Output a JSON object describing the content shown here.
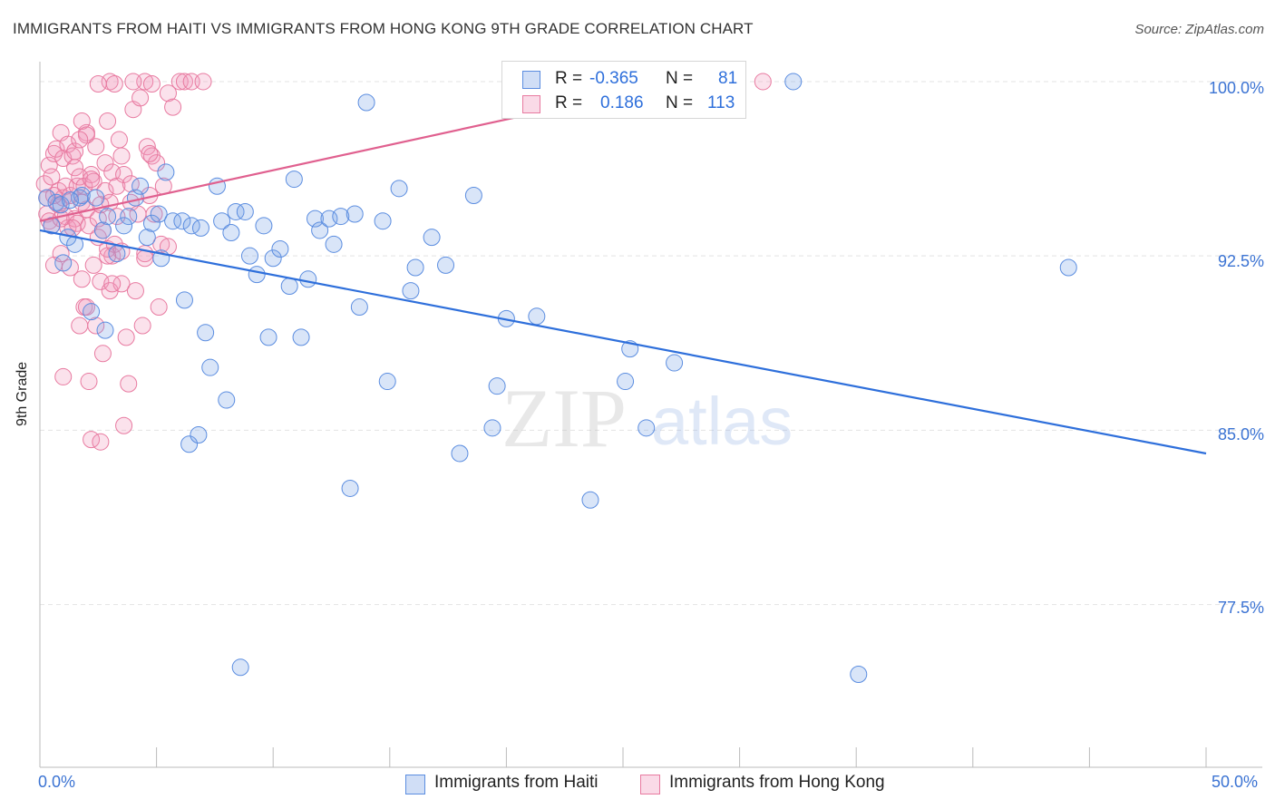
{
  "title": "IMMIGRANTS FROM HAITI VS IMMIGRANTS FROM HONG KONG 9TH GRADE CORRELATION CHART",
  "source": "Source: ZipAtlas.com",
  "watermark": {
    "zip": "ZIP",
    "atlas": "atlas"
  },
  "colors": {
    "blue": "#5b8de0",
    "blue_fill": "rgba(120,160,230,0.28)",
    "blue_line": "#2e6fdb",
    "pink": "#e87aa0",
    "pink_fill": "rgba(240,150,185,0.28)",
    "pink_line": "#e0608f",
    "axis_text": "#3b73d3"
  },
  "legend_top": {
    "rows": [
      {
        "r_label": "R =",
        "r_value": "-0.365",
        "n_label": "N =",
        "n_value": "81"
      },
      {
        "r_label": "R =",
        "r_value": "0.186",
        "n_label": "N =",
        "n_value": "113"
      }
    ]
  },
  "legend_bottom": {
    "haiti": "Immigrants from Haiti",
    "hongkong": "Immigrants from Hong Kong"
  },
  "chart_data": {
    "type": "scatter",
    "ylabel": "9th Grade",
    "x_tick_labels": [
      "0.0%",
      "50.0%"
    ],
    "y_tick_labels": [
      "100.0%",
      "92.5%",
      "85.0%",
      "77.5%"
    ],
    "xlim": [
      0,
      50
    ],
    "ylim": [
      70.5,
      100.7
    ],
    "y_ticks": [
      100.0,
      92.5,
      85.0,
      77.5
    ],
    "x_ticks": [
      0,
      5,
      10,
      15,
      20,
      25,
      30,
      35,
      40,
      45,
      50
    ],
    "series": [
      {
        "name": "Immigrants from Haiti",
        "color_key": "blue",
        "trend": {
          "x": [
            0,
            50
          ],
          "y": [
            93.6,
            84.0
          ]
        },
        "points": [
          [
            0.3,
            95.0
          ],
          [
            0.7,
            94.8
          ],
          [
            0.9,
            94.7
          ],
          [
            1.0,
            92.2
          ],
          [
            1.2,
            93.3
          ],
          [
            1.5,
            93.0
          ],
          [
            1.7,
            95.0
          ],
          [
            1.8,
            95.1
          ],
          [
            2.2,
            90.1
          ],
          [
            2.4,
            95.0
          ],
          [
            2.7,
            93.6
          ],
          [
            2.8,
            89.3
          ],
          [
            2.9,
            94.2
          ],
          [
            3.3,
            92.6
          ],
          [
            3.8,
            94.2
          ],
          [
            4.1,
            95.0
          ],
          [
            4.3,
            95.5
          ],
          [
            4.6,
            93.3
          ],
          [
            4.8,
            93.9
          ],
          [
            5.1,
            94.3
          ],
          [
            5.2,
            92.4
          ],
          [
            5.4,
            96.1
          ],
          [
            5.7,
            94.0
          ],
          [
            6.1,
            94.0
          ],
          [
            6.2,
            90.6
          ],
          [
            6.4,
            84.4
          ],
          [
            6.5,
            93.8
          ],
          [
            6.8,
            84.8
          ],
          [
            7.1,
            89.2
          ],
          [
            7.3,
            87.7
          ],
          [
            7.6,
            95.5
          ],
          [
            7.8,
            94.0
          ],
          [
            8.0,
            86.3
          ],
          [
            8.2,
            93.5
          ],
          [
            8.4,
            94.4
          ],
          [
            8.6,
            74.8
          ],
          [
            8.8,
            94.4
          ],
          [
            9.0,
            92.5
          ],
          [
            9.3,
            91.7
          ],
          [
            9.6,
            93.8
          ],
          [
            9.8,
            89.0
          ],
          [
            10.0,
            92.4
          ],
          [
            10.3,
            92.8
          ],
          [
            10.7,
            91.2
          ],
          [
            10.9,
            95.8
          ],
          [
            11.2,
            89.0
          ],
          [
            11.5,
            91.5
          ],
          [
            11.8,
            94.1
          ],
          [
            12.0,
            93.6
          ],
          [
            12.4,
            94.1
          ],
          [
            12.6,
            93.0
          ],
          [
            12.9,
            94.2
          ],
          [
            13.3,
            82.5
          ],
          [
            13.5,
            94.3
          ],
          [
            13.7,
            90.3
          ],
          [
            14.0,
            99.1
          ],
          [
            14.7,
            94.0
          ],
          [
            14.9,
            87.1
          ],
          [
            15.4,
            95.4
          ],
          [
            15.9,
            91.0
          ],
          [
            16.1,
            92.0
          ],
          [
            16.8,
            93.3
          ],
          [
            17.4,
            92.1
          ],
          [
            18.0,
            84.0
          ],
          [
            18.6,
            95.1
          ],
          [
            19.4,
            85.1
          ],
          [
            19.6,
            86.9
          ],
          [
            20.0,
            89.8
          ],
          [
            21.3,
            89.9
          ],
          [
            23.6,
            82.0
          ],
          [
            25.3,
            88.5
          ],
          [
            25.1,
            87.1
          ],
          [
            26.0,
            85.1
          ],
          [
            27.2,
            87.9
          ],
          [
            32.3,
            100.0
          ],
          [
            35.1,
            74.5
          ],
          [
            44.1,
            92.0
          ],
          [
            0.5,
            93.8
          ],
          [
            1.3,
            94.9
          ],
          [
            3.6,
            93.8
          ],
          [
            6.9,
            93.7
          ]
        ]
      },
      {
        "name": "Immigrants from Hong Kong",
        "color_key": "pink",
        "trend": {
          "x": [
            0,
            27.0
          ],
          "y": [
            94.0,
            99.9
          ]
        },
        "points": [
          [
            0.2,
            95.6
          ],
          [
            0.3,
            95.0
          ],
          [
            0.3,
            94.3
          ],
          [
            0.4,
            96.4
          ],
          [
            0.4,
            94.0
          ],
          [
            0.5,
            95.9
          ],
          [
            0.5,
            93.8
          ],
          [
            0.6,
            92.1
          ],
          [
            0.6,
            96.9
          ],
          [
            0.7,
            97.1
          ],
          [
            0.8,
            94.7
          ],
          [
            0.8,
            95.3
          ],
          [
            0.9,
            97.8
          ],
          [
            0.9,
            92.6
          ],
          [
            1.0,
            96.7
          ],
          [
            1.0,
            95.0
          ],
          [
            1.1,
            95.5
          ],
          [
            1.1,
            94.2
          ],
          [
            1.2,
            93.7
          ],
          [
            1.2,
            97.3
          ],
          [
            1.3,
            95.1
          ],
          [
            1.3,
            92.0
          ],
          [
            1.4,
            96.8
          ],
          [
            1.5,
            94.1
          ],
          [
            1.5,
            96.3
          ],
          [
            1.6,
            95.5
          ],
          [
            1.6,
            93.9
          ],
          [
            1.7,
            95.9
          ],
          [
            1.7,
            89.5
          ],
          [
            1.8,
            94.8
          ],
          [
            1.8,
            91.5
          ],
          [
            1.9,
            95.5
          ],
          [
            1.9,
            90.3
          ],
          [
            2.0,
            97.8
          ],
          [
            2.0,
            94.5
          ],
          [
            2.1,
            93.8
          ],
          [
            2.1,
            87.1
          ],
          [
            2.2,
            96.0
          ],
          [
            2.2,
            84.6
          ],
          [
            2.3,
            92.1
          ],
          [
            2.3,
            95.7
          ],
          [
            2.4,
            97.2
          ],
          [
            2.4,
            89.5
          ],
          [
            2.5,
            93.3
          ],
          [
            2.5,
            94.1
          ],
          [
            2.6,
            91.4
          ],
          [
            2.6,
            84.5
          ],
          [
            2.7,
            88.3
          ],
          [
            2.7,
            93.6
          ],
          [
            2.8,
            95.3
          ],
          [
            2.8,
            96.5
          ],
          [
            2.9,
            92.8
          ],
          [
            2.9,
            98.3
          ],
          [
            3.0,
            91.0
          ],
          [
            3.0,
            94.8
          ],
          [
            3.1,
            96.1
          ],
          [
            3.1,
            92.5
          ],
          [
            3.2,
            93.0
          ],
          [
            3.3,
            95.5
          ],
          [
            3.4,
            97.5
          ],
          [
            3.5,
            92.7
          ],
          [
            3.5,
            91.3
          ],
          [
            3.6,
            96.0
          ],
          [
            3.6,
            85.2
          ],
          [
            3.7,
            89.0
          ],
          [
            3.8,
            87.0
          ],
          [
            3.9,
            95.6
          ],
          [
            4.0,
            98.8
          ],
          [
            4.1,
            91.0
          ],
          [
            4.2,
            94.3
          ],
          [
            4.3,
            99.3
          ],
          [
            4.4,
            89.5
          ],
          [
            4.5,
            92.6
          ],
          [
            4.6,
            97.2
          ],
          [
            4.7,
            95.1
          ],
          [
            4.8,
            96.8
          ],
          [
            4.9,
            94.3
          ],
          [
            5.0,
            96.5
          ],
          [
            5.2,
            93.0
          ],
          [
            5.3,
            95.5
          ],
          [
            5.5,
            99.5
          ],
          [
            5.7,
            98.9
          ],
          [
            6.0,
            100.0
          ],
          [
            6.2,
            100.0
          ],
          [
            6.5,
            100.0
          ],
          [
            7.0,
            100.0
          ],
          [
            4.5,
            100.0
          ],
          [
            4.0,
            100.0
          ],
          [
            3.0,
            100.0
          ],
          [
            2.5,
            99.9
          ],
          [
            1.8,
            98.3
          ],
          [
            1.5,
            97.0
          ],
          [
            2.0,
            97.7
          ],
          [
            3.5,
            96.8
          ],
          [
            4.7,
            96.9
          ],
          [
            3.3,
            94.2
          ],
          [
            2.0,
            90.3
          ],
          [
            3.1,
            91.3
          ],
          [
            1.0,
            87.3
          ],
          [
            5.1,
            90.3
          ],
          [
            5.5,
            92.9
          ],
          [
            31.0,
            100.0
          ],
          [
            0.6,
            95.1
          ],
          [
            1.4,
            93.7
          ],
          [
            2.9,
            92.5
          ],
          [
            4.5,
            92.4
          ],
          [
            3.2,
            99.9
          ],
          [
            4.8,
            99.9
          ],
          [
            2.2,
            95.8
          ],
          [
            1.7,
            97.5
          ],
          [
            3.9,
            94.8
          ],
          [
            0.9,
            94.1
          ],
          [
            2.6,
            94.7
          ]
        ]
      }
    ]
  }
}
